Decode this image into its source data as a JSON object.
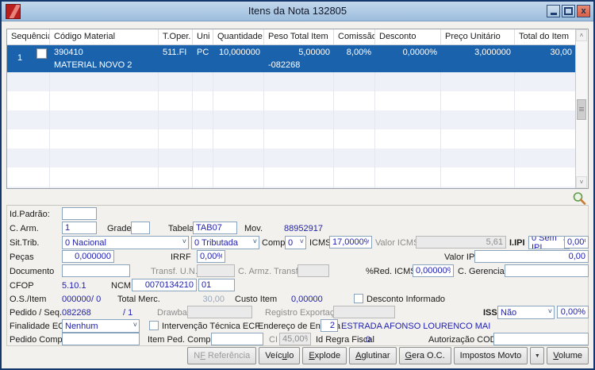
{
  "window": {
    "title": "Itens da Nota 132805",
    "controls": {
      "minimize": "minimize",
      "maximize": "maximize",
      "close": "close"
    }
  },
  "table": {
    "columns": [
      "Sequência",
      "Código Material",
      "T.Oper.",
      "Uni",
      "Quantidade",
      "Peso Total Item",
      "Comissão",
      "Desconto",
      "Preço Unitário",
      "Total do Item"
    ],
    "row": {
      "seq": "1",
      "codigo": "390410",
      "material": "MATERIAL NOVO 2",
      "toper": "511.FI",
      "uni": "PC",
      "quantidade": "10,000000",
      "peso": "5,00000",
      "peso_ref": "-082268",
      "comissao": "8,00%",
      "desconto": "0,0000%",
      "preco_unitario": "3,000000",
      "total": "30,00"
    }
  },
  "form": {
    "id_padrao": {
      "label": "Id.Padrão:",
      "value": ""
    },
    "c_arm": {
      "label": "C. Arm.",
      "value": "1"
    },
    "grade": {
      "label": "Grade",
      "value": ""
    },
    "tabela": {
      "label": "Tabela",
      "value": "TAB07"
    },
    "mov": {
      "label": "Mov.",
      "value": "88952917"
    },
    "sit_trib": {
      "label": "Sit.Trib.",
      "value": "0 Nacional",
      "value2": "0 Tributada"
    },
    "compl": {
      "label": "Compl",
      "value": "0"
    },
    "icms": {
      "label": "ICMS",
      "value": "17,0000%"
    },
    "valor_icms": {
      "label": "Valor ICMS",
      "value": "5,61"
    },
    "iipi": {
      "label": "I.IPI",
      "value": "0 Sem IPI",
      "pct": "0,00%"
    },
    "pecas": {
      "label": "Peças",
      "value": "0,000000"
    },
    "irrf": {
      "label": "IRRF",
      "value": "0,00%"
    },
    "valor_ipi": {
      "label": "Valor IPI",
      "value": "0,00"
    },
    "documento": {
      "label": "Documento",
      "value": ""
    },
    "transf_un": {
      "label": "Transf. U.N.",
      "value": ""
    },
    "c_armz_transf": {
      "label": "C. Armz. Transf.",
      "value": ""
    },
    "red_icms": {
      "label": "%Red. ICMS",
      "value": "0,00000%"
    },
    "c_gerencial": {
      "label": "C. Gerencial",
      "value": ""
    },
    "cfop": {
      "label": "CFOP",
      "value": "5.10.1"
    },
    "ncm": {
      "label": "NCM",
      "value": "0070134210",
      "value2": "01"
    },
    "os_item": {
      "label": "O.S./Item",
      "value": "000000",
      "value2": "/ 0"
    },
    "total_merc": {
      "label": "Total Merc.",
      "value": "30,00"
    },
    "custo_item": {
      "label": "Custo Item",
      "value": "0,00000"
    },
    "desconto_informado": {
      "label": "Desconto Informado"
    },
    "pedido_seq": {
      "label": "Pedido / Seq.",
      "value": "082268",
      "value2": "/ 1"
    },
    "drawback": {
      "label": "Drawback",
      "value": ""
    },
    "registro_exportacao": {
      "label": "Registro Exportação",
      "value": ""
    },
    "iss": {
      "label": "ISS",
      "value": "Não",
      "pct": "0,00%"
    },
    "finalidade_ecf": {
      "label": "Finalidade ECF",
      "value": "Nenhum"
    },
    "intervencao": {
      "label": "Intervenção Técnica ECF"
    },
    "endereco_entrega": {
      "label": "Endereço de Entrega",
      "value": "2",
      "address": "ESTRADA AFONSO LOURENCO MAI"
    },
    "pedido_compra": {
      "label": "Pedido Compra",
      "value": ""
    },
    "item_ped_compra": {
      "label": "Item Ped. Compra",
      "value": ""
    },
    "ci": {
      "label": "CI",
      "value": "45,00%"
    },
    "id_regra_fiscal": {
      "label": "Id Regra Fiscal",
      "value": "0"
    },
    "autorizacao_codif": {
      "label": "Autorização CODIF",
      "value": ""
    }
  },
  "buttons": {
    "nf_referencia": "NF Referência",
    "veiculo": "Veículo",
    "explode": "Explode",
    "aglutinar": "Aglutinar",
    "gera_oc": "Gera O.C.",
    "impostos_movto": "Impostos Movto",
    "volume": "Volume"
  },
  "icons": {
    "search": "search-icon",
    "scroll_up": "˄",
    "scroll_down": "˅"
  }
}
